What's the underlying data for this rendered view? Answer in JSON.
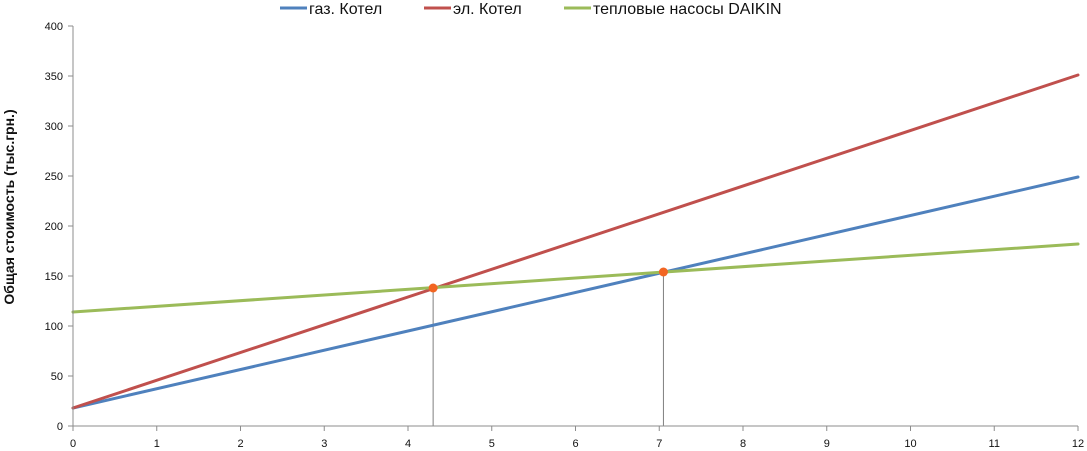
{
  "chart_data": {
    "type": "line",
    "title": "",
    "xlabel": "",
    "ylabel": "Общая стоимость (тыс.грн.)",
    "xlim": [
      0,
      12
    ],
    "ylim": [
      0,
      400
    ],
    "x_ticks": [
      "0",
      "1",
      "2",
      "3",
      "4",
      "5",
      "6",
      "7",
      "8",
      "9",
      "10",
      "11",
      "12"
    ],
    "y_ticks": [
      "0",
      "50",
      "100",
      "150",
      "200",
      "250",
      "300",
      "350",
      "400"
    ],
    "grid": false,
    "legend_position": "top",
    "series": [
      {
        "name": "газ. Котел",
        "color": "#4f81bd",
        "x": [
          0,
          12
        ],
        "y": [
          18,
          249
        ]
      },
      {
        "name": "эл. Котел",
        "color": "#c0504d",
        "x": [
          0,
          12
        ],
        "y": [
          18,
          351
        ]
      },
      {
        "name": "тепловые насосы DAIKIN",
        "color": "#9bbb59",
        "x": [
          0,
          12
        ],
        "y": [
          114,
          182
        ]
      }
    ],
    "intersections": [
      {
        "x": 4.3,
        "y": 138,
        "color": "#f26522"
      },
      {
        "x": 7.05,
        "y": 154,
        "color": "#f26522"
      }
    ]
  }
}
